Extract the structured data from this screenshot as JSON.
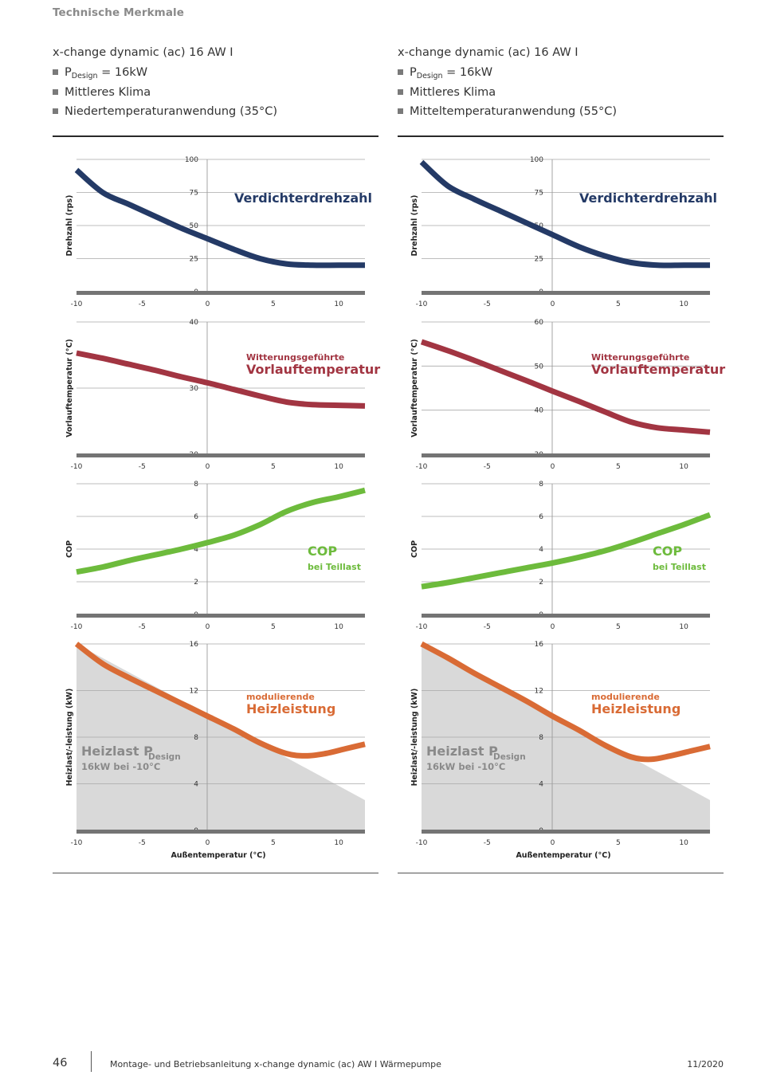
{
  "header": {
    "section_title": "Technische Merkmale"
  },
  "columns": [
    {
      "product_name": "x-change dynamic (ac) 16 AW I",
      "bullets": [
        {
          "main": "P",
          "sub": "Design",
          "rest": " = 16kW"
        },
        {
          "main": "Mittleres Klima",
          "sub": "",
          "rest": ""
        },
        {
          "main": "Niedertemperaturanwendung (35°C)",
          "sub": "",
          "rest": ""
        }
      ]
    },
    {
      "product_name": "x-change dynamic (ac) 16 AW I",
      "bullets": [
        {
          "main": "P",
          "sub": "Design",
          "rest": " = 16kW"
        },
        {
          "main": "Mittleres Klima",
          "sub": "",
          "rest": ""
        },
        {
          "main": "Mitteltemperaturanwendung (55°C)",
          "sub": "",
          "rest": ""
        }
      ]
    }
  ],
  "chart_data": [
    {
      "type": "line",
      "column": 0,
      "row": 0,
      "ylabel": "Drehzahl (rps)",
      "xlabel": "",
      "xlim": [
        -10,
        12
      ],
      "ylim": [
        0,
        100
      ],
      "x_ticks": [
        "-10",
        "-5",
        "0",
        "5",
        "10"
      ],
      "y_ticks": [
        "0",
        "25",
        "50",
        "75",
        "100"
      ],
      "grid": true,
      "color": "#243a66",
      "label_lines": [
        {
          "text": "Verdichterdrehzahl",
          "size": "large"
        }
      ],
      "series": [
        {
          "x": [
            -10,
            -8,
            -6,
            -4,
            -2,
            0,
            2,
            4,
            6,
            8,
            10,
            12
          ],
          "y": [
            92,
            75,
            66,
            57,
            48,
            40,
            32,
            25,
            21,
            20,
            20,
            20
          ]
        }
      ]
    },
    {
      "type": "line",
      "column": 0,
      "row": 1,
      "ylabel": "Vorlauftemperatur (°C)",
      "xlabel": "",
      "xlim": [
        -10,
        12
      ],
      "ylim": [
        20,
        40
      ],
      "x_ticks": [
        "-10",
        "-5",
        "0",
        "5",
        "10"
      ],
      "y_ticks": [
        "20",
        "30",
        "40"
      ],
      "grid": true,
      "color": "#a23542",
      "label_lines": [
        {
          "text": "Witterungsgeführte",
          "size": "small"
        },
        {
          "text": "Vorlauftemperatur",
          "size": "large"
        }
      ],
      "series": [
        {
          "x": [
            -10,
            -8,
            -6,
            -4,
            -2,
            0,
            2,
            4,
            6,
            8,
            10,
            12
          ],
          "y": [
            35.3,
            34.5,
            33.6,
            32.7,
            31.7,
            30.8,
            29.8,
            28.8,
            27.9,
            27.5,
            27.4,
            27.3
          ]
        }
      ]
    },
    {
      "type": "line",
      "column": 0,
      "row": 2,
      "ylabel": "COP",
      "xlabel": "",
      "xlim": [
        -10,
        12
      ],
      "ylim": [
        0,
        8
      ],
      "x_ticks": [
        "-10",
        "-5",
        "0",
        "5",
        "10"
      ],
      "y_ticks": [
        "0",
        "2",
        "4",
        "6",
        "8"
      ],
      "grid": true,
      "color": "#6dbb3c",
      "label_lines": [
        {
          "text": "COP",
          "size": "large"
        },
        {
          "text": "bei Teillast",
          "size": "small"
        }
      ],
      "series": [
        {
          "x": [
            -10,
            -8,
            -6,
            -4,
            -2,
            0,
            2,
            4,
            6,
            8,
            10,
            12
          ],
          "y": [
            2.6,
            2.9,
            3.3,
            3.65,
            4.0,
            4.4,
            4.85,
            5.5,
            6.3,
            6.85,
            7.2,
            7.6
          ]
        }
      ]
    },
    {
      "type": "area",
      "column": 0,
      "row": 3,
      "ylabel": "Heizlast/-leistung (kW)",
      "xlabel": "Außentemperatur (°C)",
      "xlim": [
        -10,
        12
      ],
      "ylim": [
        0,
        16
      ],
      "x_ticks": [
        "-10",
        "-5",
        "0",
        "5",
        "10"
      ],
      "y_ticks": [
        "0",
        "4",
        "8",
        "12",
        "16"
      ],
      "grid": true,
      "color": "#d96b35",
      "area_color": "#d9d9d9",
      "label_lines": [
        {
          "text": "modulierende",
          "size": "small"
        },
        {
          "text": "Heizleistung",
          "size": "large"
        }
      ],
      "area_label": {
        "main": "Heizlast P",
        "sub": "Design",
        "line2": "16kW bei -10°C"
      },
      "area_series": {
        "name": "Heizlast",
        "x": [
          -10,
          12
        ],
        "y": [
          16,
          2.6
        ]
      },
      "series": [
        {
          "x": [
            -10,
            -8,
            -6,
            -4,
            -2,
            0,
            2,
            4,
            6,
            7.5,
            9,
            10.5,
            12
          ],
          "y": [
            16,
            14.3,
            13.1,
            12.0,
            10.9,
            9.8,
            8.7,
            7.5,
            6.6,
            6.4,
            6.6,
            7.0,
            7.4
          ]
        }
      ]
    },
    {
      "type": "line",
      "column": 1,
      "row": 0,
      "ylabel": "Drehzahl (rps)",
      "xlabel": "",
      "xlim": [
        -10,
        12
      ],
      "ylim": [
        0,
        100
      ],
      "x_ticks": [
        "-10",
        "-5",
        "0",
        "5",
        "10"
      ],
      "y_ticks": [
        "0",
        "25",
        "50",
        "75",
        "100"
      ],
      "grid": true,
      "color": "#243a66",
      "label_lines": [
        {
          "text": "Verdichterdrehzahl",
          "size": "large"
        }
      ],
      "series": [
        {
          "x": [
            -10,
            -8,
            -6,
            -4,
            -2,
            0,
            2,
            4,
            6,
            8,
            10,
            12
          ],
          "y": [
            98,
            80,
            70,
            61,
            52,
            43,
            34,
            27,
            22,
            20,
            20,
            20
          ]
        }
      ]
    },
    {
      "type": "line",
      "column": 1,
      "row": 1,
      "ylabel": "Vorlauftemperatur (°C)",
      "xlabel": "",
      "xlim": [
        -10,
        12
      ],
      "ylim": [
        30,
        60
      ],
      "x_ticks": [
        "-10",
        "-5",
        "0",
        "5",
        "10"
      ],
      "y_ticks": [
        "30",
        "40",
        "50",
        "60"
      ],
      "grid": true,
      "color": "#a23542",
      "label_lines": [
        {
          "text": "Witterungsgeführte",
          "size": "small"
        },
        {
          "text": "Vorlauftemperatur",
          "size": "large"
        }
      ],
      "series": [
        {
          "x": [
            -10,
            -8,
            -6,
            -4,
            -2,
            0,
            2,
            4,
            6,
            8,
            10,
            12
          ],
          "y": [
            55.5,
            53.5,
            51.3,
            49.0,
            46.7,
            44.3,
            42.0,
            39.6,
            37.3,
            36.0,
            35.5,
            35.0
          ]
        }
      ]
    },
    {
      "type": "line",
      "column": 1,
      "row": 2,
      "ylabel": "COP",
      "xlabel": "",
      "xlim": [
        -10,
        12
      ],
      "ylim": [
        0,
        8
      ],
      "x_ticks": [
        "-10",
        "-5",
        "0",
        "5",
        "10"
      ],
      "y_ticks": [
        "0",
        "2",
        "4",
        "6",
        "8"
      ],
      "grid": true,
      "color": "#6dbb3c",
      "label_lines": [
        {
          "text": "COP",
          "size": "large"
        },
        {
          "text": "bei Teillast",
          "size": "small"
        }
      ],
      "series": [
        {
          "x": [
            -10,
            -8,
            -6,
            -4,
            -2,
            0,
            2,
            4,
            6,
            8,
            10,
            12
          ],
          "y": [
            1.7,
            1.95,
            2.25,
            2.55,
            2.85,
            3.15,
            3.5,
            3.9,
            4.4,
            4.95,
            5.5,
            6.1
          ]
        }
      ]
    },
    {
      "type": "area",
      "column": 1,
      "row": 3,
      "ylabel": "Heizlast/-leistung (kW)",
      "xlabel": "Außentemperatur (°C)",
      "xlim": [
        -10,
        12
      ],
      "ylim": [
        0,
        16
      ],
      "x_ticks": [
        "-10",
        "-5",
        "0",
        "5",
        "10"
      ],
      "y_ticks": [
        "0",
        "4",
        "8",
        "12",
        "16"
      ],
      "grid": true,
      "color": "#d96b35",
      "area_color": "#d9d9d9",
      "label_lines": [
        {
          "text": "modulierende",
          "size": "small"
        },
        {
          "text": "Heizleistung",
          "size": "large"
        }
      ],
      "area_label": {
        "main": "Heizlast P",
        "sub": "Design",
        "line2": "16kW bei -10°C"
      },
      "area_series": {
        "name": "Heizlast",
        "x": [
          -10,
          12
        ],
        "y": [
          16,
          2.6
        ]
      },
      "series": [
        {
          "x": [
            -10,
            -8,
            -6,
            -4,
            -2,
            0,
            2,
            4,
            6,
            7.5,
            9,
            10.5,
            12
          ],
          "y": [
            16,
            14.8,
            13.5,
            12.3,
            11.1,
            9.8,
            8.6,
            7.3,
            6.3,
            6.1,
            6.4,
            6.8,
            7.2
          ]
        }
      ]
    }
  ],
  "footer": {
    "page_number": "46",
    "text": "Montage- und Betriebsanleitung x-change dynamic (ac) AW I Wärmepumpe",
    "date": "11/2020"
  }
}
